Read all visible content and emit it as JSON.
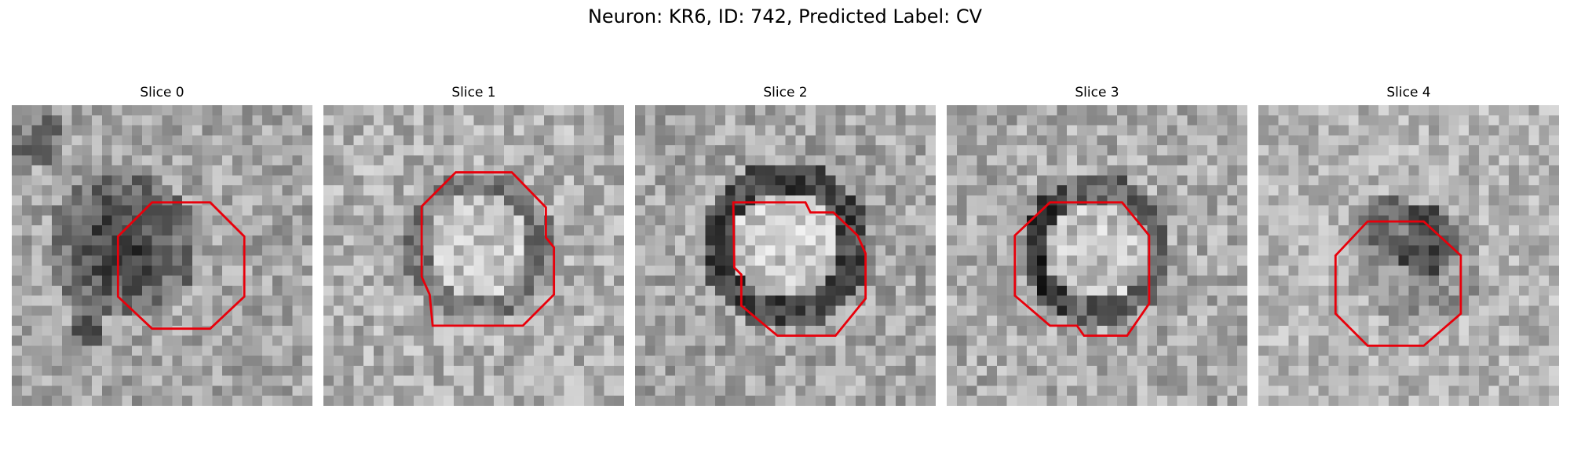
{
  "figure": {
    "title": "Neuron: KR6, ID: 742, Predicted Label: CV"
  },
  "panels": [
    {
      "title": "Slice 0"
    },
    {
      "title": "Slice 1"
    },
    {
      "title": "Slice 2"
    },
    {
      "title": "Slice 3"
    },
    {
      "title": "Slice 4"
    }
  ],
  "colors": {
    "contour": "#e8000b",
    "image_colormap": "grayscale"
  }
}
